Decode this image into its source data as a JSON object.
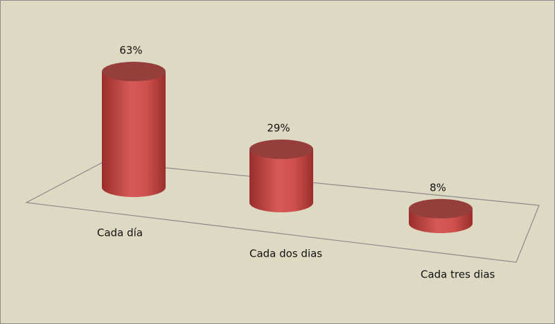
{
  "chart_data": {
    "type": "bar3d",
    "categories": [
      "Cada día",
      "Cada dos dias",
      "Cada tres dias"
    ],
    "values": [
      63,
      29,
      8
    ],
    "value_labels": [
      "63%",
      "29%",
      "8%"
    ],
    "color": "#c0504d"
  }
}
